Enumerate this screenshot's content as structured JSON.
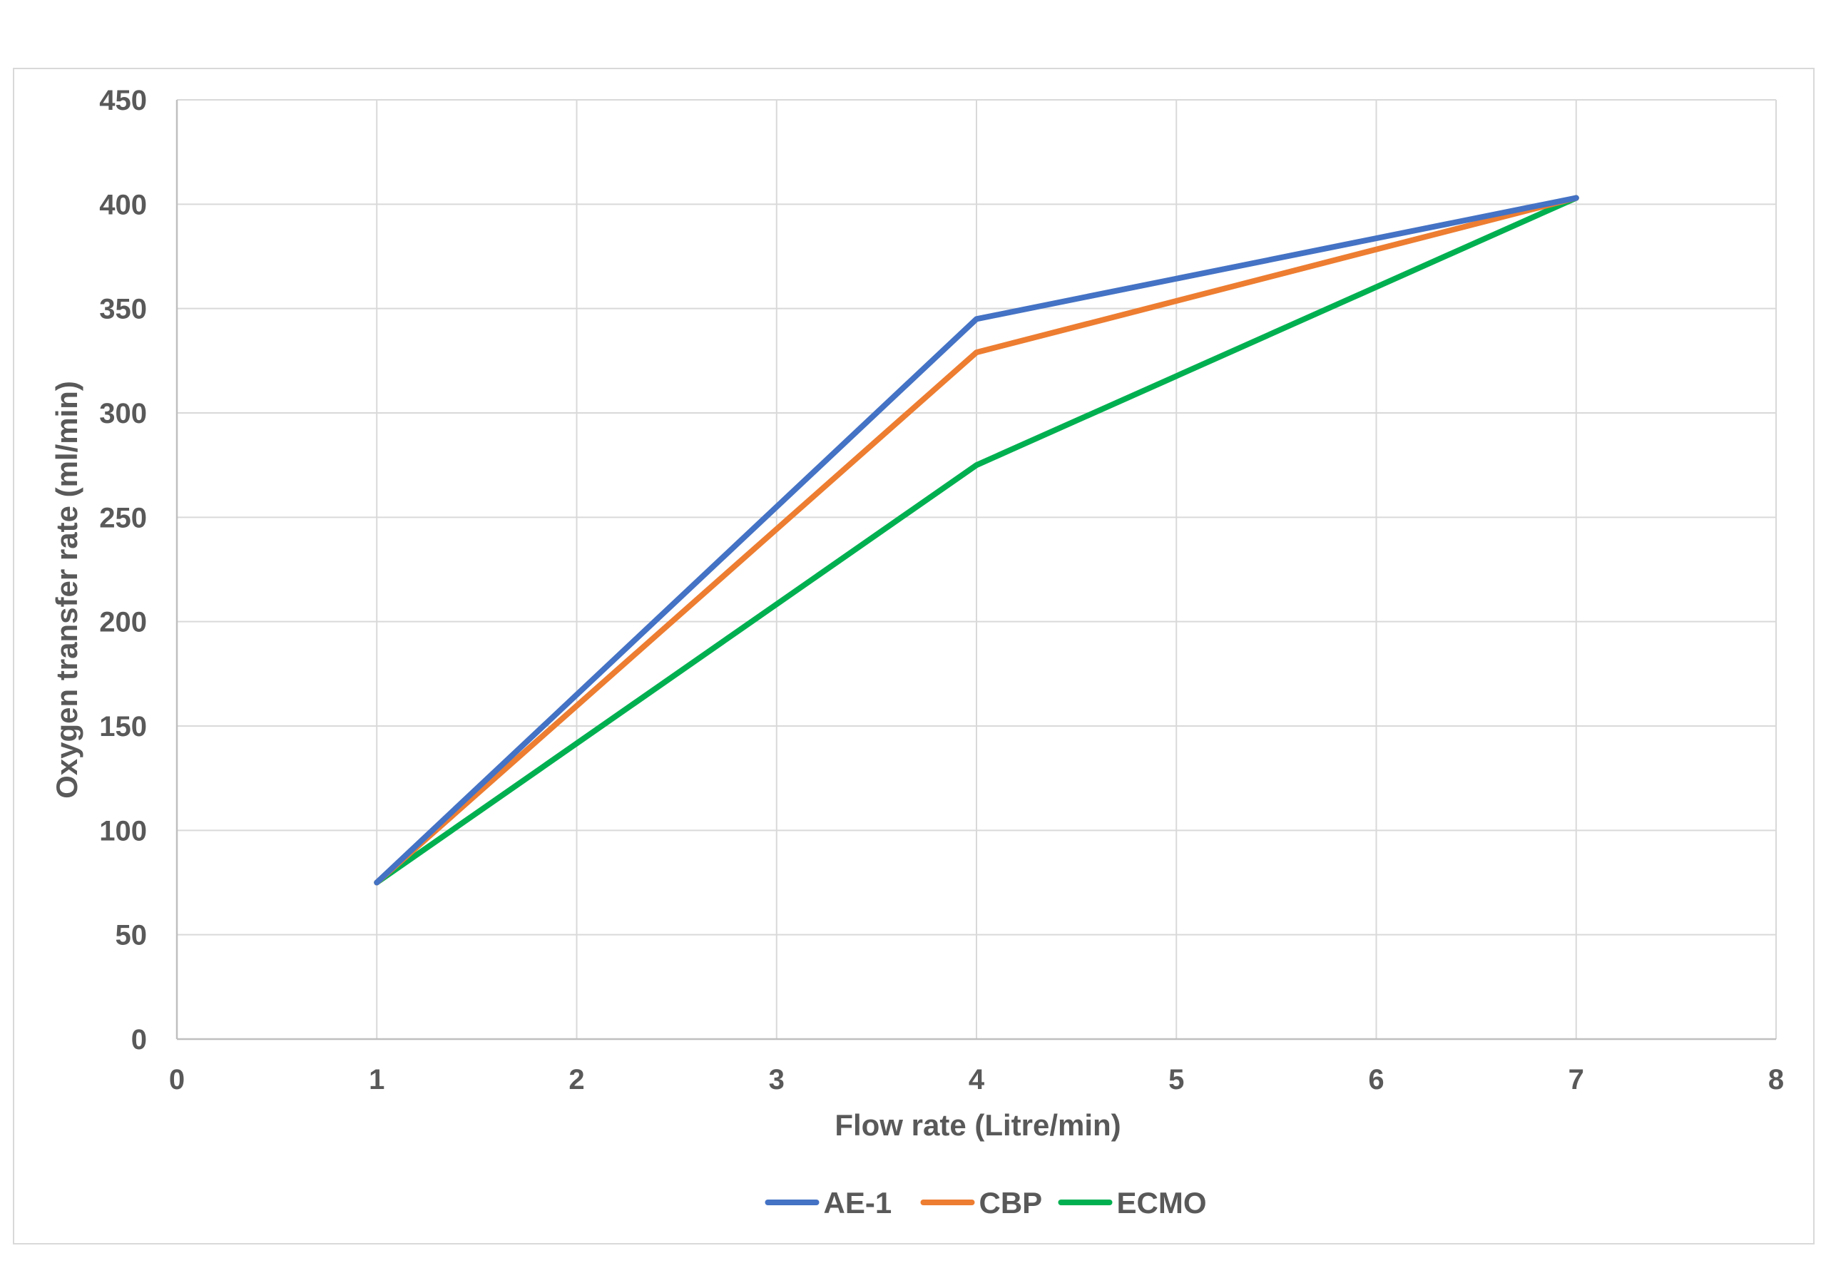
{
  "chart_data": {
    "type": "line",
    "title": "",
    "xlabel": "Flow rate (Litre/min)",
    "ylabel": "Oxygen transfer rate (ml/min)",
    "xlim": [
      0,
      8
    ],
    "ylim": [
      0,
      450
    ],
    "xticks": [
      0,
      1,
      2,
      3,
      4,
      5,
      6,
      7,
      8
    ],
    "yticks": [
      0,
      50,
      100,
      150,
      200,
      250,
      300,
      350,
      400,
      450
    ],
    "grid": true,
    "legend_position": "bottom",
    "series": [
      {
        "name": "AE-1",
        "color": "#4472C4",
        "x": [
          1,
          4,
          7
        ],
        "y": [
          75,
          345,
          403
        ]
      },
      {
        "name": "CBP",
        "color": "#ED7D31",
        "x": [
          1,
          4,
          7
        ],
        "y": [
          75,
          329,
          403
        ]
      },
      {
        "name": "ECMO",
        "color": "#00B050",
        "x": [
          1,
          4,
          7
        ],
        "y": [
          75,
          275,
          403
        ]
      }
    ]
  }
}
